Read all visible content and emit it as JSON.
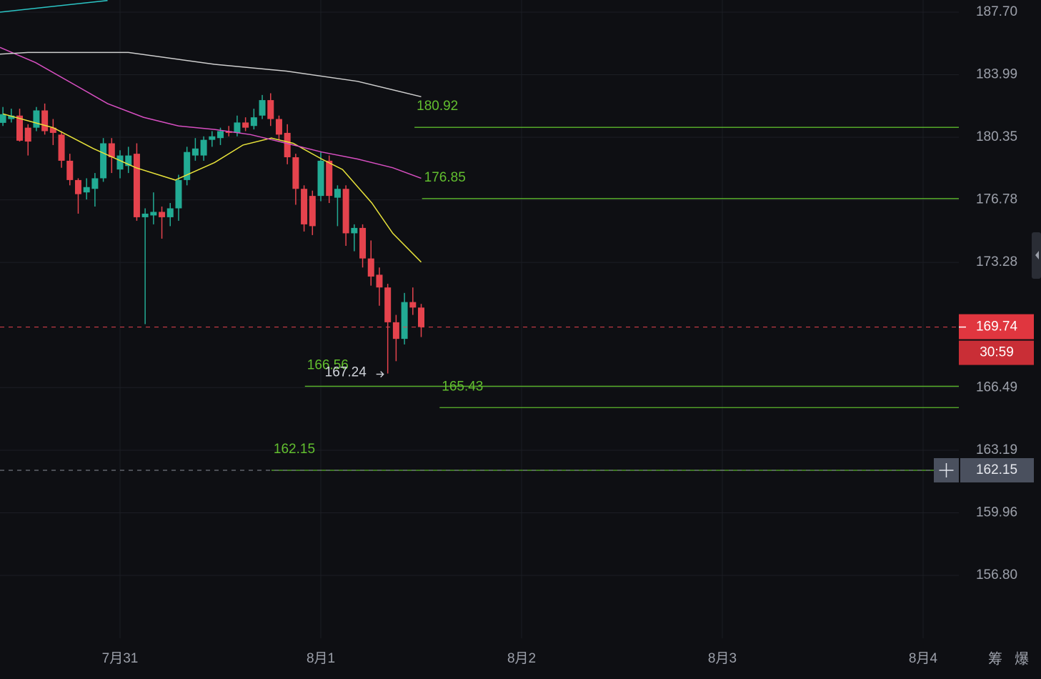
{
  "chart_data": {
    "type": "candlestick",
    "log_scale": true,
    "grid": true,
    "up_color": "#22ab94",
    "down_color": "#e5434d",
    "xlim": [
      -14.35,
      100.27
    ],
    "ylim": [
      153.68,
      188.43
    ],
    "xticks": [
      {
        "value": 0,
        "label": "7月31"
      },
      {
        "value": 24,
        "label": "8月1"
      },
      {
        "value": 48,
        "label": "8月2"
      },
      {
        "value": 72,
        "label": "8月3"
      },
      {
        "value": 96,
        "label": "8月4"
      }
    ],
    "yticks": [
      {
        "value": 187.7,
        "label": "187.70"
      },
      183.99,
      180.35,
      176.78,
      173.28,
      166.49,
      163.19,
      159.96,
      {
        "value": 156.8,
        "label": "156.80"
      }
    ],
    "x": [
      -14,
      -13,
      -12,
      -11,
      -10,
      -9,
      -8,
      -7,
      -6,
      -5,
      -4,
      -3,
      -2,
      -1,
      0,
      1,
      2,
      3,
      4,
      5,
      6,
      7,
      8,
      9,
      10,
      11,
      12,
      13,
      14,
      15,
      16,
      17,
      18,
      19,
      20,
      21,
      22,
      23,
      24,
      25,
      26,
      27,
      28,
      29,
      30,
      31,
      32,
      33,
      34,
      35,
      36
    ],
    "open": [
      181.18,
      181.4,
      181.6,
      180.9,
      180.9,
      181.9,
      180.9,
      180.5,
      179.0,
      177.9,
      177.2,
      177.4,
      178.0,
      180.0,
      178.5,
      178.7,
      179.4,
      175.8,
      175.9,
      176.1,
      175.8,
      176.3,
      177.9,
      179.3,
      179.3,
      180.2,
      180.3,
      180.7,
      180.6,
      181.2,
      181.0,
      181.6,
      182.5,
      181.4,
      180.6,
      179.2,
      177.4,
      177.0,
      177.0,
      179.0,
      176.9,
      177.4,
      174.9,
      175.2,
      173.5,
      172.6,
      171.9,
      170.0,
      169.1,
      171.1,
      170.8
    ],
    "high": [
      182.1,
      182.0,
      182.0,
      181.1,
      182.1,
      182.3,
      181.4,
      180.7,
      179.4,
      178.0,
      178.0,
      178.3,
      180.3,
      180.3,
      179.6,
      179.8,
      180.0,
      176.3,
      177.2,
      176.4,
      176.6,
      178.2,
      179.8,
      180.3,
      180.4,
      180.7,
      180.9,
      181.0,
      181.6,
      181.5,
      182.0,
      182.8,
      182.9,
      181.6,
      181.1,
      179.4,
      177.6,
      177.3,
      179.5,
      179.3,
      177.6,
      177.6,
      175.4,
      175.4,
      174.5,
      173.0,
      172.1,
      170.4,
      171.6,
      171.9,
      171.0
    ],
    "low": [
      181.0,
      181.2,
      180.1,
      179.3,
      180.7,
      180.5,
      179.9,
      178.6,
      177.6,
      176.0,
      176.8,
      176.4,
      177.8,
      178.3,
      178.0,
      178.3,
      175.6,
      169.9,
      175.4,
      174.6,
      175.3,
      175.6,
      177.6,
      179.0,
      179.0,
      179.8,
      179.9,
      180.4,
      180.4,
      180.7,
      180.8,
      181.4,
      181.0,
      180.2,
      178.8,
      176.5,
      175.0,
      174.8,
      176.7,
      176.6,
      175.3,
      174.2,
      173.9,
      173.0,
      172.0,
      170.9,
      167.24,
      167.9,
      168.8,
      170.4,
      169.2
    ],
    "close": [
      181.68,
      181.6,
      180.15,
      180.1,
      181.9,
      180.7,
      180.6,
      179.0,
      177.9,
      177.1,
      177.5,
      178.0,
      180.0,
      179.2,
      179.3,
      179.3,
      175.8,
      176.0,
      176.1,
      175.8,
      176.3,
      177.9,
      179.5,
      179.7,
      180.2,
      180.4,
      180.7,
      180.6,
      181.2,
      180.9,
      181.5,
      182.5,
      181.4,
      180.5,
      179.2,
      177.4,
      175.4,
      175.3,
      179.0,
      177.0,
      177.4,
      174.9,
      175.2,
      173.5,
      172.5,
      171.9,
      170.0,
      169.1,
      171.1,
      170.8,
      169.74
    ],
    "lines": [
      {
        "color": "#e8e33a",
        "x": [
          -14,
          -8,
          -3.2,
          1.9,
          6.6,
          11.3,
          14.7,
          18.1,
          20.7,
          24.1,
          26.6,
          30.1,
          32.6,
          36
        ],
        "values": [
          181.7,
          180.9,
          179.7,
          178.6,
          177.9,
          178.9,
          179.9,
          180.3,
          180.0,
          179.1,
          178.5,
          176.6,
          174.9,
          173.3
        ]
      },
      {
        "color": "#d84fc2",
        "x": [
          -14.35,
          -10.1,
          -5.8,
          -1.5,
          2.8,
          7,
          11.3,
          15.6,
          19.9,
          24.1,
          28.4,
          32.6,
          36
        ],
        "values": [
          185.6,
          184.7,
          183.5,
          182.3,
          181.5,
          181.0,
          180.8,
          180.5,
          180.0,
          179.5,
          179.1,
          178.6,
          178.0
        ]
      },
      {
        "color": "#cfcfcf",
        "x": [
          -14.35,
          -11,
          1,
          11.3,
          19.9,
          28.4,
          36
        ],
        "values": [
          185.2,
          185.3,
          185.3,
          184.6,
          184.2,
          183.6,
          182.7
        ]
      },
      {
        "color": "#2bc5c5",
        "x": [
          -14.35,
          -1.5
        ],
        "values": [
          187.7,
          188.4
        ]
      }
    ],
    "levels": [
      {
        "value": 180.92,
        "x": 35.2
      },
      {
        "value": 176.85,
        "x": 36.1
      },
      {
        "value": 166.56,
        "x": 22.1
      },
      {
        "value": 165.43,
        "x": 38.2
      },
      {
        "value": 162.15,
        "x": 18.1
      }
    ],
    "crosshair_price": 162.15,
    "last_price": 169.74,
    "countdown": "30:59",
    "side_buttons": [
      "筹",
      "爆"
    ]
  }
}
